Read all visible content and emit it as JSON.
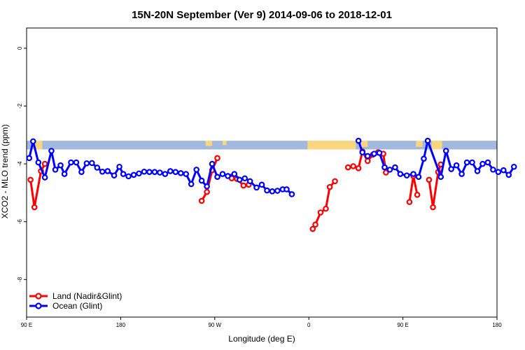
{
  "chart_data": {
    "type": "line",
    "title": "15N-20N September (Ver 9)   2014-09-06 to 2018-12-01",
    "xlabel": "Longitude (deg E)",
    "ylabel": "XCO2 - MLO trend (ppm)",
    "xlim": [
      90,
      450
    ],
    "ylim": [
      -9.3,
      0.7
    ],
    "x_ticks": [
      {
        "value": 90,
        "label": "90 E"
      },
      {
        "value": 162,
        "label": "180"
      },
      {
        "value": 234,
        "label": "90 W"
      },
      {
        "value": 306,
        "label": "0"
      },
      {
        "value": 378,
        "label": "90 E"
      },
      {
        "value": 450,
        "label": "180"
      }
    ],
    "y_ticks": [
      0,
      -2,
      -4,
      -6,
      -8
    ],
    "grid": false,
    "legend_position": "bottom-left",
    "land_mask_band": {
      "y_top": -3.2,
      "y_bottom": -3.5,
      "ocean_color": "#a2b9de",
      "land_color": "#fad77e"
    },
    "series": [
      {
        "name": "Land (Nadir&Glint)",
        "color": "#ff0000",
        "segments": [
          [
            [
              93,
              -4.55
            ],
            [
              96,
              -5.5
            ],
            [
              101,
              -4.25
            ],
            [
              104,
              -4.0
            ]
          ],
          [
            [
              224,
              -5.28
            ],
            [
              228,
              -4.97
            ],
            [
              232,
              -4.22
            ],
            [
              236,
              -3.8
            ]
          ],
          [
            [
              247,
              -4.5
            ],
            [
              251,
              -4.52
            ],
            [
              256,
              -4.75
            ],
            [
              260,
              -4.72
            ]
          ],
          [
            [
              309,
              -6.25
            ],
            [
              311,
              -6.1
            ],
            [
              315,
              -5.68
            ],
            [
              319,
              -5.55
            ],
            [
              322,
              -4.8
            ],
            [
              326,
              -4.6
            ]
          ],
          [
            [
              336,
              -4.12
            ],
            [
              340,
              -4.08
            ],
            [
              344,
              -4.15
            ],
            [
              347,
              -3.57
            ],
            [
              351,
              -3.9
            ],
            [
              355,
              -3.68
            ],
            [
              359,
              -3.6
            ],
            [
              363,
              -3.65
            ],
            [
              365,
              -4.3
            ]
          ],
          [
            [
              383,
              -5.32
            ],
            [
              386,
              -4.42
            ],
            [
              389,
              -5.07
            ]
          ],
          [
            [
              398,
              -4.55
            ],
            [
              401,
              -5.5
            ],
            [
              405,
              -4.28
            ],
            [
              407,
              -4.02
            ]
          ]
        ]
      },
      {
        "name": "Ocean (Glint)",
        "color": "#0000ff",
        "segments": [
          [
            [
              92,
              -3.8
            ],
            [
              95,
              -3.22
            ],
            [
              99,
              -3.95
            ],
            [
              104,
              -4.47
            ],
            [
              109,
              -3.55
            ],
            [
              112,
              -4.2
            ],
            [
              116,
              -4.05
            ],
            [
              119,
              -4.35
            ],
            [
              124,
              -3.95
            ],
            [
              128,
              -3.95
            ],
            [
              132,
              -4.28
            ],
            [
              136,
              -3.98
            ],
            [
              140,
              -3.97
            ],
            [
              144,
              -4.13
            ],
            [
              148,
              -4.27
            ],
            [
              152,
              -4.25
            ],
            [
              157,
              -4.4
            ],
            [
              161,
              -4.1
            ],
            [
              164,
              -4.35
            ],
            [
              168,
              -4.43
            ],
            [
              172,
              -4.38
            ],
            [
              176,
              -4.33
            ],
            [
              180,
              -4.27
            ],
            [
              184,
              -4.28
            ],
            [
              188,
              -4.28
            ],
            [
              192,
              -4.3
            ],
            [
              196,
              -4.35
            ],
            [
              200,
              -4.25
            ],
            [
              204,
              -4.28
            ],
            [
              208,
              -4.32
            ],
            [
              212,
              -4.35
            ],
            [
              216,
              -4.7
            ],
            [
              220,
              -4.2
            ],
            [
              224,
              -4.58
            ],
            [
              228,
              -4.78
            ],
            [
              232,
              -4.0
            ],
            [
              236,
              -4.45
            ],
            [
              240,
              -4.35
            ],
            [
              244,
              -4.42
            ],
            [
              249,
              -4.35
            ],
            [
              253,
              -4.55
            ],
            [
              257,
              -4.5
            ],
            [
              261,
              -4.6
            ],
            [
              266,
              -4.82
            ],
            [
              270,
              -4.72
            ],
            [
              274,
              -4.92
            ],
            [
              278,
              -4.95
            ],
            [
              282,
              -4.93
            ],
            [
              286,
              -4.88
            ],
            [
              289,
              -4.88
            ],
            [
              293,
              -5.05
            ]
          ],
          [
            [
              344,
              -3.2
            ],
            [
              347,
              -3.6
            ],
            [
              351,
              -3.73
            ],
            [
              356,
              -3.65
            ],
            [
              360,
              -3.62
            ],
            [
              364,
              -4.12
            ],
            [
              368,
              -4.2
            ],
            [
              372,
              -4.12
            ],
            [
              376,
              -4.35
            ],
            [
              381,
              -4.4
            ],
            [
              386,
              -4.35
            ],
            [
              390,
              -4.45
            ],
            [
              394,
              -3.82
            ],
            [
              397,
              -3.2
            ],
            [
              407,
              -4.45
            ],
            [
              411,
              -3.55
            ],
            [
              415,
              -4.18
            ],
            [
              419,
              -4.05
            ],
            [
              423,
              -4.35
            ],
            [
              427,
              -3.95
            ],
            [
              431,
              -3.95
            ],
            [
              435,
              -4.25
            ],
            [
              439,
              -4.0
            ],
            [
              443,
              -3.95
            ],
            [
              447,
              -4.2
            ],
            [
              451,
              -4.28
            ],
            [
              455,
              -4.22
            ],
            [
              459,
              -4.38
            ],
            [
              463,
              -4.1
            ]
          ]
        ]
      }
    ]
  }
}
